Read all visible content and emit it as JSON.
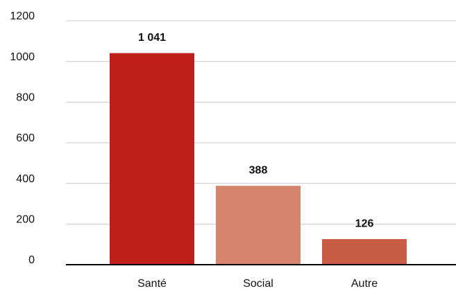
{
  "chart_data": {
    "type": "bar",
    "categories": [
      "Santé",
      "Social",
      "Autre"
    ],
    "values": [
      1041,
      388,
      126
    ],
    "value_labels": [
      "1 041",
      "388",
      "126"
    ],
    "colors": [
      "#c0201c",
      "#d6846b",
      "#c95c45"
    ],
    "ylim": [
      0,
      1200
    ],
    "yticks": [
      0,
      200,
      400,
      600,
      800,
      1000,
      1200
    ],
    "grid": true
  }
}
